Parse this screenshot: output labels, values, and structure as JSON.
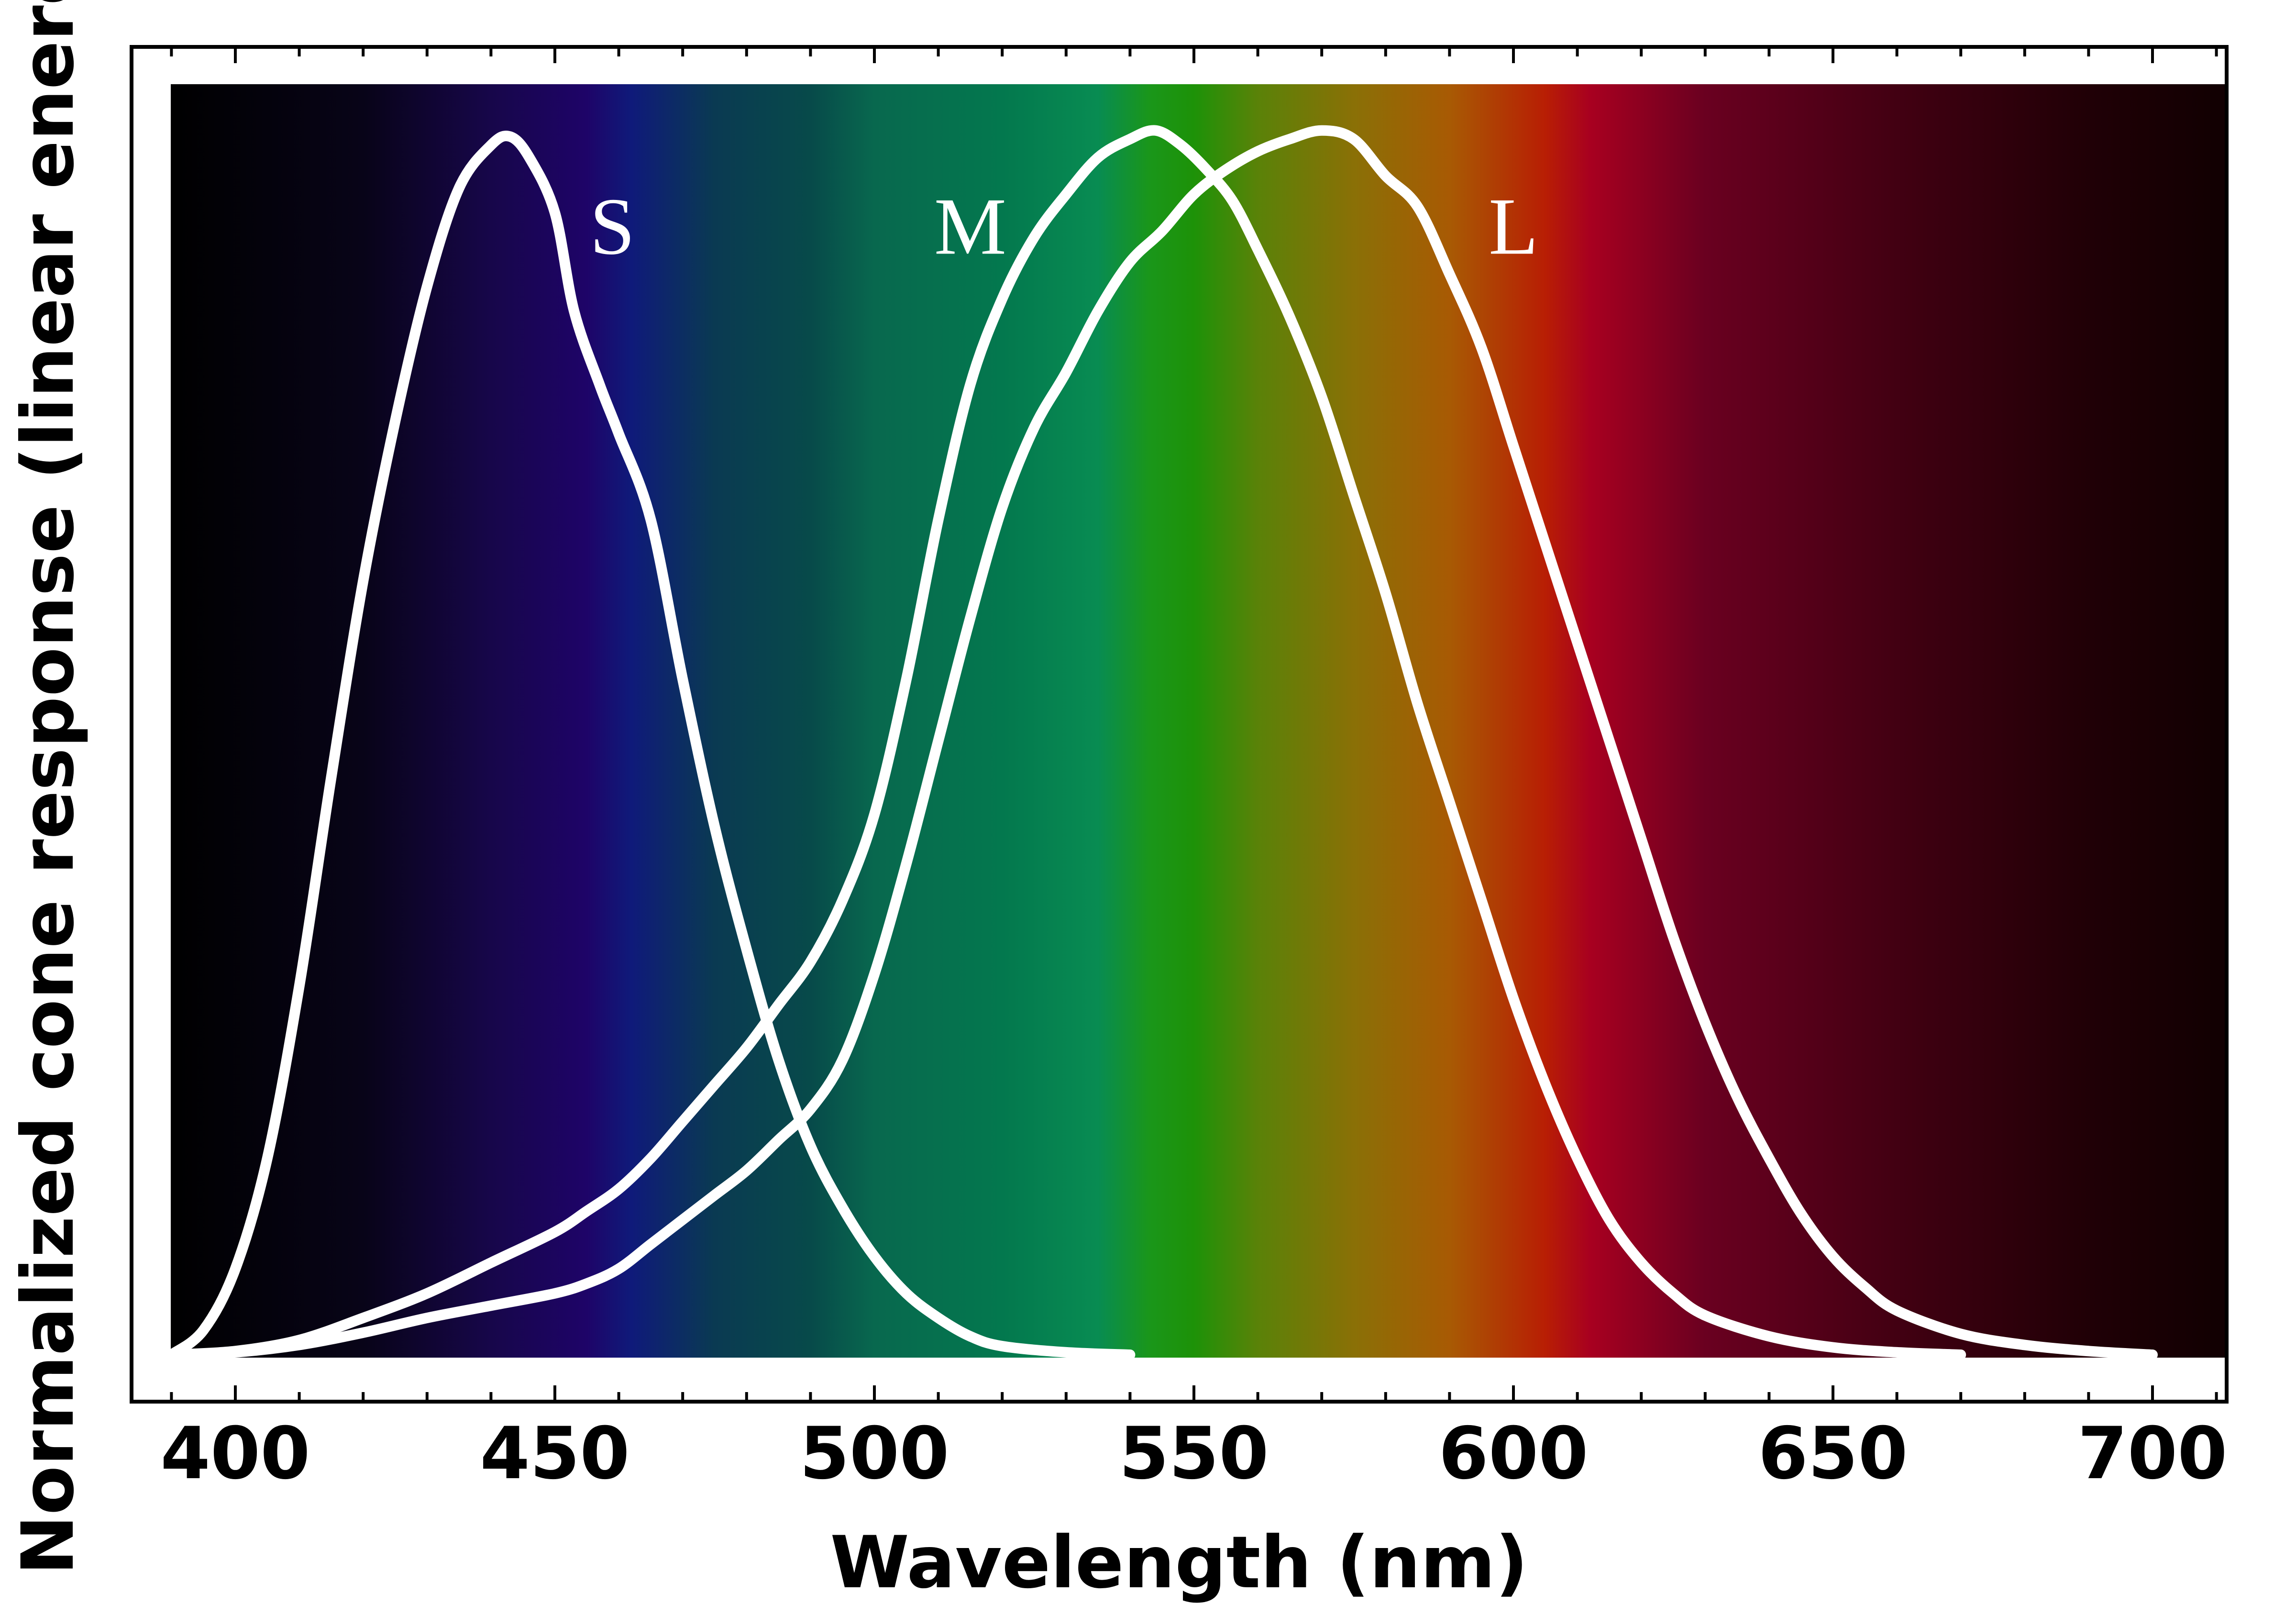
{
  "chart_data": {
    "type": "line",
    "xlabel": "Wavelength (nm)",
    "ylabel": "Normalized cone response (linear energy)",
    "xlim": [
      390,
      710
    ],
    "ylim": [
      0,
      1
    ],
    "x_ticks": [
      400,
      450,
      500,
      550,
      600,
      650,
      700
    ],
    "x_minor_step": 10,
    "grid": false,
    "legend": "none",
    "background": "visible spectrum gradient",
    "curve_color": "#ffffff",
    "spectrum_stops": [
      {
        "nm": 390,
        "color": "#000000"
      },
      {
        "nm": 420,
        "color": "#080418"
      },
      {
        "nm": 440,
        "color": "#17064a"
      },
      {
        "nm": 455,
        "color": "#1e0468"
      },
      {
        "nm": 462,
        "color": "#0f1a7a"
      },
      {
        "nm": 475,
        "color": "#0a3a52"
      },
      {
        "nm": 490,
        "color": "#074a4a"
      },
      {
        "nm": 500,
        "color": "#08684e"
      },
      {
        "nm": 520,
        "color": "#03784e"
      },
      {
        "nm": 535,
        "color": "#088c52"
      },
      {
        "nm": 543,
        "color": "#1a961a"
      },
      {
        "nm": 550,
        "color": "#1d9208"
      },
      {
        "nm": 560,
        "color": "#5a8208"
      },
      {
        "nm": 575,
        "color": "#8a7006"
      },
      {
        "nm": 590,
        "color": "#a85a04"
      },
      {
        "nm": 605,
        "color": "#b81e04"
      },
      {
        "nm": 612,
        "color": "#a80020"
      },
      {
        "nm": 630,
        "color": "#6a0020"
      },
      {
        "nm": 660,
        "color": "#420012"
      },
      {
        "nm": 690,
        "color": "#200006"
      },
      {
        "nm": 710,
        "color": "#120002"
      }
    ],
    "series": [
      {
        "name": "S",
        "label_position": {
          "x": 459,
          "y": 0.92
        },
        "points": [
          [
            390,
            0.0
          ],
          [
            395,
            0.02
          ],
          [
            400,
            0.07
          ],
          [
            405,
            0.16
          ],
          [
            410,
            0.3
          ],
          [
            415,
            0.47
          ],
          [
            420,
            0.63
          ],
          [
            425,
            0.76
          ],
          [
            430,
            0.87
          ],
          [
            435,
            0.95
          ],
          [
            440,
            0.985
          ],
          [
            443,
            0.992
          ],
          [
            446,
            0.975
          ],
          [
            450,
            0.93
          ],
          [
            453,
            0.85
          ],
          [
            457,
            0.79
          ],
          [
            460,
            0.75
          ],
          [
            465,
            0.68
          ],
          [
            470,
            0.55
          ],
          [
            475,
            0.43
          ],
          [
            480,
            0.33
          ],
          [
            485,
            0.24
          ],
          [
            490,
            0.17
          ],
          [
            495,
            0.12
          ],
          [
            500,
            0.08
          ],
          [
            505,
            0.05
          ],
          [
            510,
            0.03
          ],
          [
            515,
            0.015
          ],
          [
            520,
            0.007
          ],
          [
            530,
            0.002
          ],
          [
            540,
            0.0
          ]
        ]
      },
      {
        "name": "M",
        "label_position": {
          "x": 515,
          "y": 0.92
        },
        "points": [
          [
            390,
            0.0
          ],
          [
            400,
            0.003
          ],
          [
            410,
            0.012
          ],
          [
            420,
            0.03
          ],
          [
            430,
            0.05
          ],
          [
            440,
            0.075
          ],
          [
            450,
            0.1
          ],
          [
            455,
            0.117
          ],
          [
            460,
            0.135
          ],
          [
            465,
            0.16
          ],
          [
            470,
            0.19
          ],
          [
            475,
            0.22
          ],
          [
            480,
            0.25
          ],
          [
            485,
            0.285
          ],
          [
            490,
            0.32
          ],
          [
            495,
            0.37
          ],
          [
            500,
            0.44
          ],
          [
            505,
            0.55
          ],
          [
            510,
            0.68
          ],
          [
            515,
            0.79
          ],
          [
            520,
            0.86
          ],
          [
            525,
            0.91
          ],
          [
            530,
            0.945
          ],
          [
            535,
            0.975
          ],
          [
            540,
            0.99
          ],
          [
            544,
            0.997
          ],
          [
            548,
            0.985
          ],
          [
            552,
            0.965
          ],
          [
            556,
            0.94
          ],
          [
            560,
            0.9
          ],
          [
            565,
            0.845
          ],
          [
            570,
            0.78
          ],
          [
            575,
            0.7
          ],
          [
            580,
            0.62
          ],
          [
            585,
            0.53
          ],
          [
            590,
            0.45
          ],
          [
            595,
            0.37
          ],
          [
            600,
            0.29
          ],
          [
            605,
            0.22
          ],
          [
            610,
            0.16
          ],
          [
            615,
            0.11
          ],
          [
            620,
            0.075
          ],
          [
            625,
            0.05
          ],
          [
            630,
            0.032
          ],
          [
            640,
            0.015
          ],
          [
            650,
            0.006
          ],
          [
            660,
            0.002
          ],
          [
            670,
            0.0
          ]
        ]
      },
      {
        "name": "L",
        "label_position": {
          "x": 600,
          "y": 0.92
        },
        "points": [
          [
            390,
            0.0
          ],
          [
            400,
            0.002
          ],
          [
            410,
            0.008
          ],
          [
            420,
            0.018
          ],
          [
            430,
            0.03
          ],
          [
            440,
            0.04
          ],
          [
            450,
            0.05
          ],
          [
            455,
            0.058
          ],
          [
            460,
            0.07
          ],
          [
            465,
            0.09
          ],
          [
            470,
            0.11
          ],
          [
            475,
            0.13
          ],
          [
            480,
            0.15
          ],
          [
            485,
            0.175
          ],
          [
            490,
            0.2
          ],
          [
            495,
            0.24
          ],
          [
            500,
            0.31
          ],
          [
            505,
            0.4
          ],
          [
            510,
            0.5
          ],
          [
            515,
            0.6
          ],
          [
            520,
            0.69
          ],
          [
            525,
            0.755
          ],
          [
            530,
            0.8
          ],
          [
            535,
            0.85
          ],
          [
            540,
            0.89
          ],
          [
            545,
            0.915
          ],
          [
            550,
            0.945
          ],
          [
            555,
            0.965
          ],
          [
            560,
            0.98
          ],
          [
            565,
            0.99
          ],
          [
            570,
            0.997
          ],
          [
            575,
            0.99
          ],
          [
            580,
            0.96
          ],
          [
            585,
            0.935
          ],
          [
            590,
            0.88
          ],
          [
            595,
            0.82
          ],
          [
            600,
            0.74
          ],
          [
            605,
            0.66
          ],
          [
            610,
            0.58
          ],
          [
            615,
            0.5
          ],
          [
            620,
            0.42
          ],
          [
            625,
            0.34
          ],
          [
            630,
            0.27
          ],
          [
            635,
            0.21
          ],
          [
            640,
            0.16
          ],
          [
            645,
            0.115
          ],
          [
            650,
            0.08
          ],
          [
            655,
            0.055
          ],
          [
            660,
            0.036
          ],
          [
            670,
            0.017
          ],
          [
            680,
            0.008
          ],
          [
            690,
            0.003
          ],
          [
            700,
            0.0
          ]
        ]
      }
    ]
  }
}
